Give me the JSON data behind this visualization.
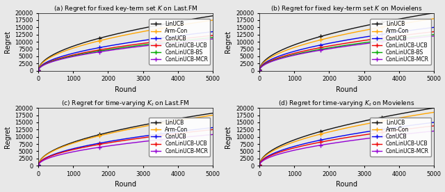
{
  "rounds": 5000,
  "n_points": 300,
  "subplots": [
    {
      "label": "(a) Regret for fixed key-term set $\\mathit{K}$ on Last.FM",
      "ylim": [
        0,
        20000
      ],
      "yticks": [
        0,
        2500,
        5000,
        7500,
        10000,
        12500,
        15000,
        17500,
        20000
      ],
      "series": [
        {
          "name": "LinUCB",
          "color": "#111111",
          "final": 19000
        },
        {
          "name": "Arm-Con",
          "color": "#FFA500",
          "final": 17500
        },
        {
          "name": "ConUCB",
          "color": "#0000EE",
          "final": 13500
        },
        {
          "name": "ConLinUCB-UCB",
          "color": "#EE0000",
          "final": 12200
        },
        {
          "name": "ConLinUCB-BS",
          "color": "#00AA00",
          "final": 11500
        },
        {
          "name": "ConLinUCB-MCR",
          "color": "#9400D3",
          "final": 11000
        }
      ]
    },
    {
      "label": "(b) Regret for fixed key-term set $\\mathit{K}$ on Movielens",
      "ylim": [
        0,
        20000
      ],
      "yticks": [
        0,
        2500,
        5000,
        7500,
        10000,
        12500,
        15000,
        17500,
        20000
      ],
      "series": [
        {
          "name": "LinUCB",
          "color": "#111111",
          "final": 20000
        },
        {
          "name": "Arm-Con",
          "color": "#FFA500",
          "final": 18000
        },
        {
          "name": "ConUCB",
          "color": "#0000EE",
          "final": 15000
        },
        {
          "name": "ConLinUCB-UCB",
          "color": "#EE0000",
          "final": 13500
        },
        {
          "name": "ConLinUCB-BS",
          "color": "#00AA00",
          "final": 12500
        },
        {
          "name": "ConLinUCB-MCR",
          "color": "#9400D3",
          "final": 12000
        }
      ]
    },
    {
      "label": "(c) Regret for time-varying $\\mathit{K}_t$ on Last.FM",
      "ylim": [
        0,
        20000
      ],
      "yticks": [
        0,
        2500,
        5000,
        7500,
        10000,
        12500,
        15000,
        17500,
        20000
      ],
      "series": [
        {
          "name": "LinUCB",
          "color": "#111111",
          "final": 18200
        },
        {
          "name": "Arm-Con",
          "color": "#FFA500",
          "final": 17500
        },
        {
          "name": "ConUCB",
          "color": "#0000EE",
          "final": 13200
        },
        {
          "name": "ConLinUCB-UCB",
          "color": "#EE0000",
          "final": 12500
        },
        {
          "name": "ConLinUCB-MCR",
          "color": "#9400D3",
          "final": 10800
        }
      ]
    },
    {
      "label": "(d) Regret for time-varying $\\mathit{K}_t$ on Movielens",
      "ylim": [
        0,
        20000
      ],
      "yticks": [
        0,
        2500,
        5000,
        7500,
        10000,
        12500,
        15000,
        17500,
        20000
      ],
      "series": [
        {
          "name": "LinUCB",
          "color": "#111111",
          "final": 20000
        },
        {
          "name": "Arm-Con",
          "color": "#FFA500",
          "final": 18500
        },
        {
          "name": "ConUCB",
          "color": "#0000EE",
          "final": 15000
        },
        {
          "name": "ConLinUCB-UCB",
          "color": "#EE0000",
          "final": 13800
        },
        {
          "name": "ConLinUCB-MCR",
          "color": "#9400D3",
          "final": 12000
        }
      ]
    }
  ],
  "xlabel": "Round",
  "ylabel": "Regret",
  "figsize": [
    6.4,
    2.76
  ],
  "dpi": 100,
  "bg_color": "#E8E8E8"
}
